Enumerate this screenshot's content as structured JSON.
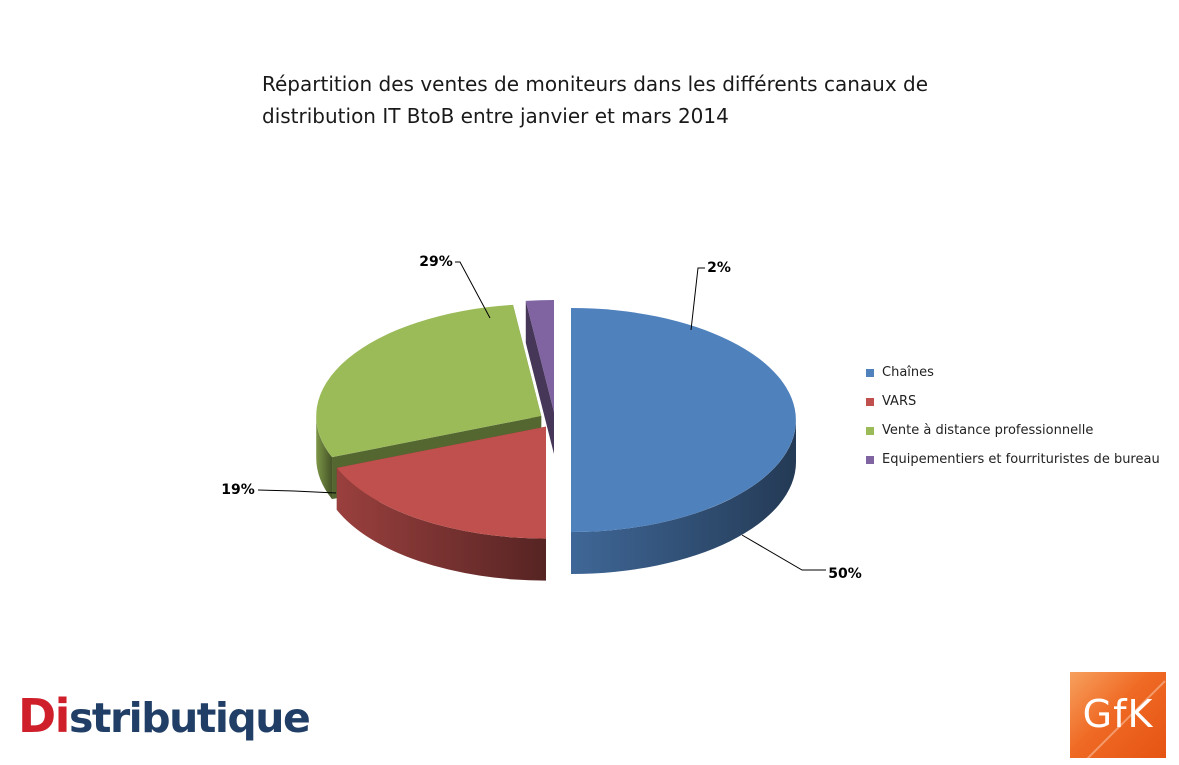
{
  "chart_data": {
    "type": "pie",
    "title_lines": [
      "Répartition des ventes de moniteurs dans les différents canaux de",
      "distribution IT BtoB entre janvier et mars 2014"
    ],
    "categories": [
      "Chaînes",
      "VARS",
      "Vente à distance professionnelle",
      "Equipementiers et fourrituristes de bureau"
    ],
    "values": [
      50,
      19,
      29,
      2
    ],
    "data_labels": [
      "50%",
      "19%",
      "29%",
      "2%"
    ],
    "colors": [
      "#4f81bd",
      "#c0504d",
      "#9bbb59",
      "#8064a2"
    ],
    "legend_position": "right",
    "style": "3d-exploded"
  },
  "logos": {
    "distributique_red": "Di",
    "distributique_blue": "stributique",
    "gfk": "GfK"
  }
}
